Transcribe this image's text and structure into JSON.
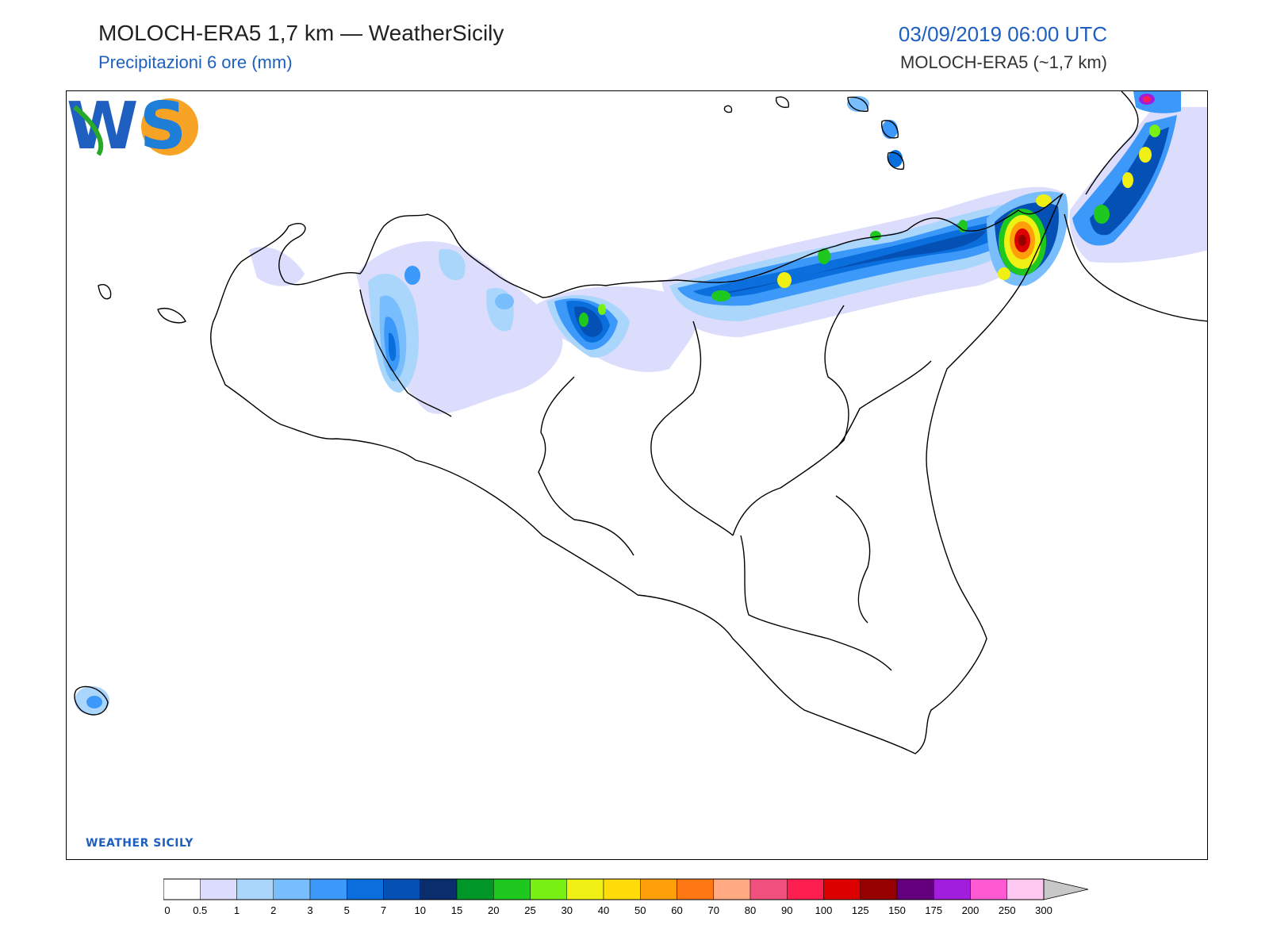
{
  "header": {
    "title": "MOLOCH-ERA5 1,7 km — WeatherSicily",
    "subtitle": "Precipitazioni 6 ore (mm)",
    "datetime": "03/09/2019 06:00 UTC",
    "model_label": "MOLOCH-ERA5 (~1,7 km)"
  },
  "logo": {
    "text": "WS",
    "caption": "WEATHER SICILY"
  },
  "legend": {
    "tick_labels": [
      "0",
      "0.5",
      "1",
      "2",
      "3",
      "5",
      "7",
      "10",
      "15",
      "20",
      "25",
      "30",
      "40",
      "50",
      "60",
      "70",
      "80",
      "90",
      "100",
      "125",
      "150",
      "175",
      "200",
      "250",
      "300"
    ],
    "colors": [
      "#ffffff",
      "#dcdcfc",
      "#aad6fc",
      "#78bdfc",
      "#3c99fa",
      "#0a6edc",
      "#0550b4",
      "#0a2d6e",
      "#009628",
      "#1ec81e",
      "#78f014",
      "#f0f014",
      "#ffdc0a",
      "#ffa00a",
      "#ff7814",
      "#ffaa82",
      "#f0507d",
      "#ff1e50",
      "#dc0000",
      "#960000",
      "#64007d",
      "#a01edc",
      "#ff5ad2",
      "#ffc8f0"
    ],
    "overflow_color": "#c8c8c8"
  },
  "map": {
    "region": "Sicily",
    "precip_colors": {
      "light": "#dcdcfc",
      "l2": "#aad6fc",
      "l3": "#78bdfc",
      "l4": "#3c99fa",
      "l5": "#0a6edc",
      "l6": "#0550b4",
      "l7": "#0a2d6e",
      "g1": "#009628",
      "g2": "#1ec81e",
      "g3": "#78f014",
      "y1": "#f0f014",
      "o1": "#ffa00a",
      "r1": "#dc0000",
      "r2": "#960000",
      "p1": "#a01edc"
    }
  }
}
